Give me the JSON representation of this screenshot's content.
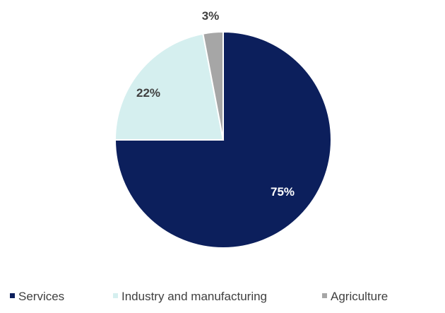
{
  "chart_data": {
    "type": "pie",
    "slices": [
      {
        "name": "Services",
        "value": 75,
        "label": "75%",
        "color": "#0c1f5c",
        "label_color": "#ffffff"
      },
      {
        "name": "Industry and manufacturing",
        "value": 22,
        "label": "22%",
        "color": "#d5efef",
        "label_color": "#404040"
      },
      {
        "name": "Agriculture",
        "value": 3,
        "label": "3%",
        "color": "#a6a6a6",
        "label_color": "#404040"
      }
    ],
    "legend_position": "bottom"
  }
}
